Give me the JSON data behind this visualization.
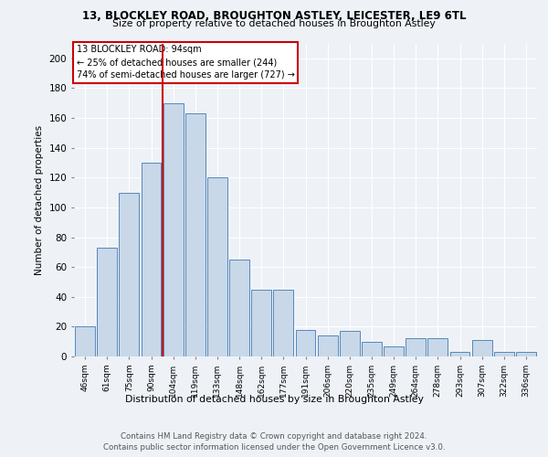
{
  "title1": "13, BLOCKLEY ROAD, BROUGHTON ASTLEY, LEICESTER, LE9 6TL",
  "title2": "Size of property relative to detached houses in Broughton Astley",
  "xlabel": "Distribution of detached houses by size in Broughton Astley",
  "ylabel": "Number of detached properties",
  "footer1": "Contains HM Land Registry data © Crown copyright and database right 2024.",
  "footer2": "Contains public sector information licensed under the Open Government Licence v3.0.",
  "categories": [
    "46sqm",
    "61sqm",
    "75sqm",
    "90sqm",
    "104sqm",
    "119sqm",
    "133sqm",
    "148sqm",
    "162sqm",
    "177sqm",
    "191sqm",
    "206sqm",
    "220sqm",
    "235sqm",
    "249sqm",
    "264sqm",
    "278sqm",
    "293sqm",
    "307sqm",
    "322sqm",
    "336sqm"
  ],
  "values": [
    20,
    73,
    110,
    130,
    170,
    163,
    120,
    65,
    45,
    45,
    18,
    14,
    17,
    10,
    7,
    12,
    12,
    3,
    11,
    3,
    3
  ],
  "bar_color": "#c8d8e8",
  "bar_edge_color": "#5588bb",
  "vline_x": 3.5,
  "vline_color": "#cc0000",
  "annotation_title": "13 BLOCKLEY ROAD: 94sqm",
  "annotation_line1": "← 25% of detached houses are smaller (244)",
  "annotation_line2": "74% of semi-detached houses are larger (727) →",
  "annotation_box_color": "#ffffff",
  "annotation_box_edge": "#cc0000",
  "ylim": [
    0,
    210
  ],
  "yticks": [
    0,
    20,
    40,
    60,
    80,
    100,
    120,
    140,
    160,
    180,
    200
  ],
  "background_color": "#eef2f7",
  "grid_color": "#ffffff"
}
